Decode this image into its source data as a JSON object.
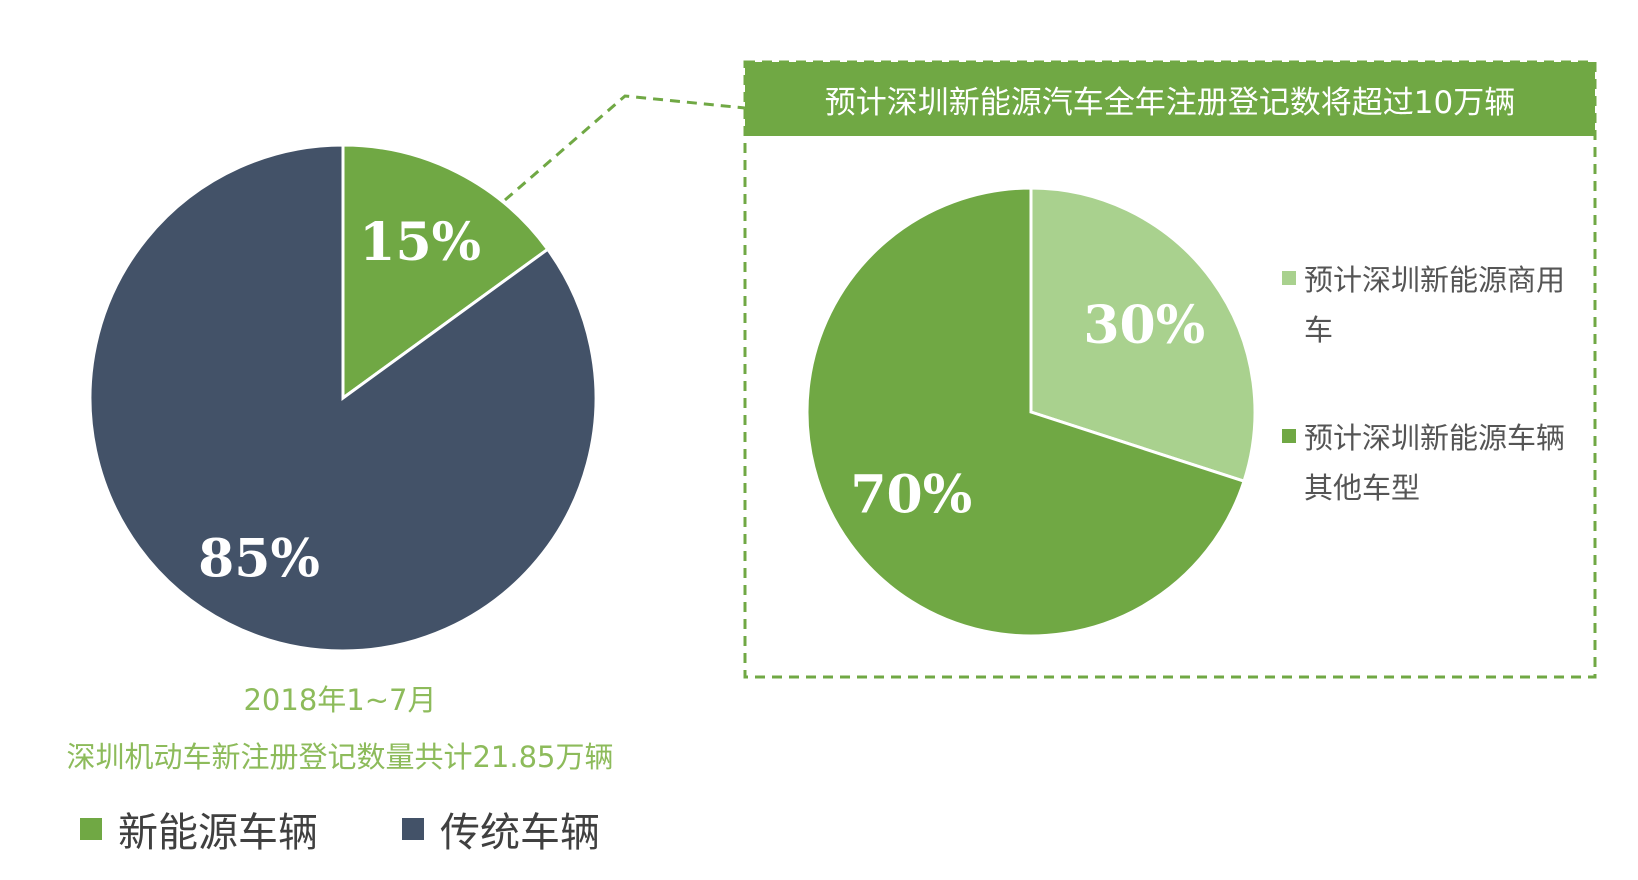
{
  "chart_data": [
    {
      "type": "pie",
      "title": "",
      "slices": [
        {
          "label": "新能源车辆",
          "value": 15,
          "label_text": "15%",
          "color": "#70a844"
        },
        {
          "label": "传统车辆",
          "value": 85,
          "label_text": "85%",
          "color": "#435268"
        }
      ],
      "caption_line1": "2018年1~7月",
      "caption_line2": "深圳机动车新注册登记数量共计21.85万辆",
      "legend": [
        {
          "label": "新能源车辆",
          "color": "#70a844"
        },
        {
          "label": "传统车辆",
          "color": "#435268"
        }
      ]
    },
    {
      "type": "pie",
      "title": "预计深圳新能源汽车全年注册登记数将超过10万辆",
      "slices": [
        {
          "label": "预计深圳新能源商用车",
          "value": 30,
          "label_text": "30%",
          "color": "#a9d18e"
        },
        {
          "label": "预计深圳新能源车辆其他车型",
          "value": 70,
          "label_text": "70%",
          "color": "#70a844"
        }
      ],
      "legend": [
        {
          "label": "预计深圳新能源商用车",
          "color": "#a9d18e"
        },
        {
          "label": "预计深圳新能源车辆其他车型",
          "color": "#70a844"
        }
      ]
    }
  ],
  "colors": {
    "dashed_border": "#70a844",
    "caption": "#8dbb5b"
  }
}
